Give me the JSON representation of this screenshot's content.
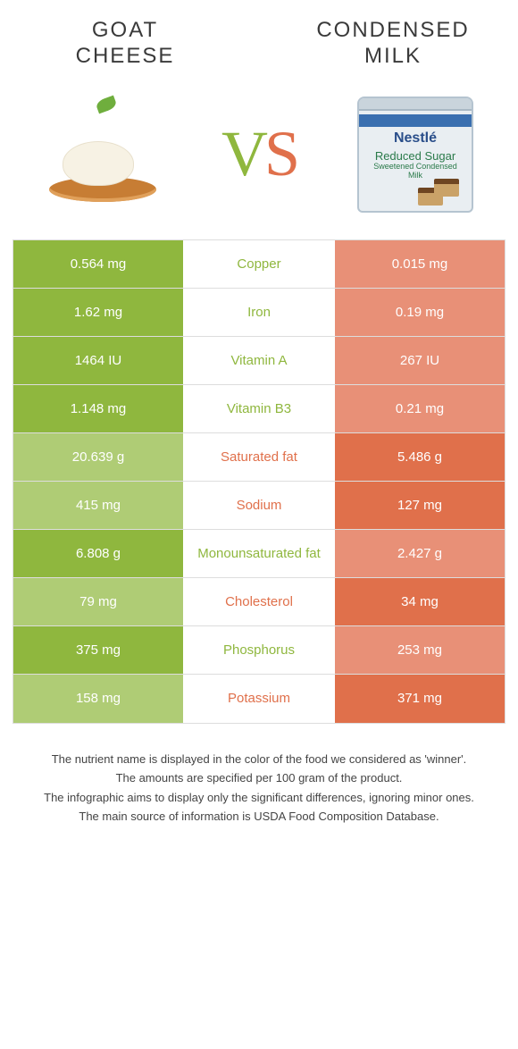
{
  "colors": {
    "green_win": "#8fb73e",
    "green_lose": "#afcc75",
    "orange_win": "#e0704b",
    "orange_lose": "#e89077",
    "text": "#3a3a3a"
  },
  "left_food": {
    "title_line1": "GOAT",
    "title_line2": "CHEESE"
  },
  "right_food": {
    "title_line1": "CONDENSED",
    "title_line2": "MILK"
  },
  "vs": {
    "v": "V",
    "s": "S"
  },
  "can": {
    "brand": "Nestlé",
    "sub_small": "Sweetened Condensed Milk",
    "sub_big": "Reduced Sugar"
  },
  "rows": [
    {
      "nutrient": "Copper",
      "left": "0.564 mg",
      "right": "0.015 mg",
      "winner": "left"
    },
    {
      "nutrient": "Iron",
      "left": "1.62 mg",
      "right": "0.19 mg",
      "winner": "left"
    },
    {
      "nutrient": "Vitamin A",
      "left": "1464 IU",
      "right": "267 IU",
      "winner": "left"
    },
    {
      "nutrient": "Vitamin B3",
      "left": "1.148 mg",
      "right": "0.21 mg",
      "winner": "left"
    },
    {
      "nutrient": "Saturated fat",
      "left": "20.639 g",
      "right": "5.486 g",
      "winner": "right"
    },
    {
      "nutrient": "Sodium",
      "left": "415 mg",
      "right": "127 mg",
      "winner": "right"
    },
    {
      "nutrient": "Monounsaturated fat",
      "left": "6.808 g",
      "right": "2.427 g",
      "winner": "left"
    },
    {
      "nutrient": "Cholesterol",
      "left": "79 mg",
      "right": "34 mg",
      "winner": "right"
    },
    {
      "nutrient": "Phosphorus",
      "left": "375 mg",
      "right": "253 mg",
      "winner": "left"
    },
    {
      "nutrient": "Potassium",
      "left": "158 mg",
      "right": "371 mg",
      "winner": "right"
    }
  ],
  "footer": [
    "The nutrient name is displayed in the color of the food we considered as 'winner'.",
    "The amounts are specified per 100 gram of the product.",
    "The infographic aims to display only the significant differences, ignoring minor ones.",
    "The main source of information is USDA Food Composition Database."
  ]
}
